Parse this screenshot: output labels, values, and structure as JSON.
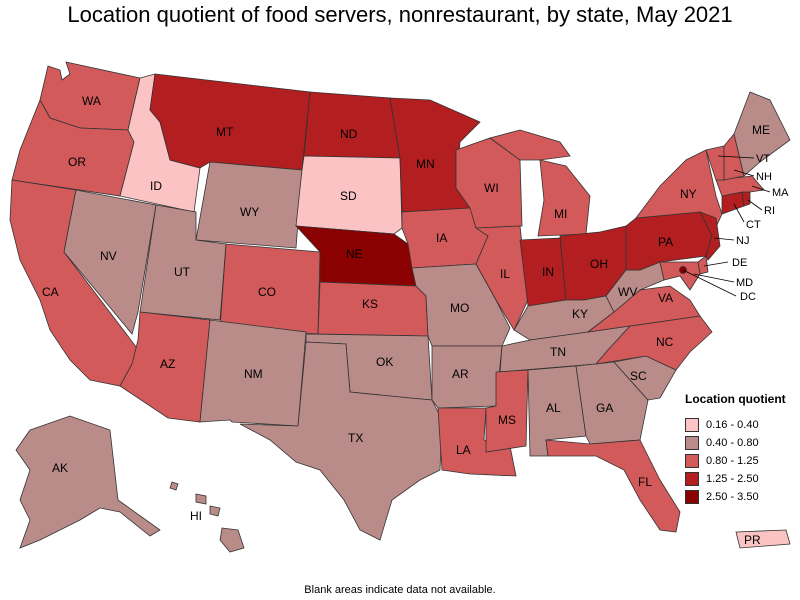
{
  "title": "Location quotient of food servers, nonrestaurant, by state, May 2021",
  "footnote": "Blank areas indicate data not available.",
  "legend": {
    "title": "Location quotient",
    "bins": [
      {
        "label": "0.16 - 0.40",
        "color": "#fbc3c3"
      },
      {
        "label": "0.40 - 0.80",
        "color": "#b98c8a"
      },
      {
        "label": "0.80 - 1.25",
        "color": "#d35a5a"
      },
      {
        "label": "1.25 - 2.50",
        "color": "#b31e21"
      },
      {
        "label": "2.50 - 3.50",
        "color": "#8b0000"
      }
    ]
  },
  "states": {
    "WA": {
      "label": "WA",
      "bin": 2
    },
    "OR": {
      "label": "OR",
      "bin": 2
    },
    "CA": {
      "label": "CA",
      "bin": 2
    },
    "ID": {
      "label": "ID",
      "bin": 0
    },
    "NV": {
      "label": "NV",
      "bin": 1
    },
    "MT": {
      "label": "MT",
      "bin": 3
    },
    "WY": {
      "label": "WY",
      "bin": 1
    },
    "UT": {
      "label": "UT",
      "bin": 1
    },
    "AZ": {
      "label": "AZ",
      "bin": 2
    },
    "CO": {
      "label": "CO",
      "bin": 2
    },
    "NM": {
      "label": "NM",
      "bin": 1
    },
    "ND": {
      "label": "ND",
      "bin": 3
    },
    "SD": {
      "label": "SD",
      "bin": 0
    },
    "NE": {
      "label": "NE",
      "bin": 4
    },
    "KS": {
      "label": "KS",
      "bin": 2
    },
    "OK": {
      "label": "OK",
      "bin": 1
    },
    "TX": {
      "label": "TX",
      "bin": 1
    },
    "MN": {
      "label": "MN",
      "bin": 3
    },
    "IA": {
      "label": "IA",
      "bin": 2
    },
    "MO": {
      "label": "MO",
      "bin": 1
    },
    "AR": {
      "label": "AR",
      "bin": 1
    },
    "LA": {
      "label": "LA",
      "bin": 2
    },
    "WI": {
      "label": "WI",
      "bin": 2
    },
    "IL": {
      "label": "IL",
      "bin": 2
    },
    "MI": {
      "label": "MI",
      "bin": 2
    },
    "IN": {
      "label": "IN",
      "bin": 3
    },
    "OH": {
      "label": "OH",
      "bin": 3
    },
    "KY": {
      "label": "KY",
      "bin": 1
    },
    "TN": {
      "label": "TN",
      "bin": 1
    },
    "MS": {
      "label": "MS",
      "bin": 2
    },
    "AL": {
      "label": "AL",
      "bin": 1
    },
    "GA": {
      "label": "GA",
      "bin": 1
    },
    "FL": {
      "label": "FL",
      "bin": 2
    },
    "SC": {
      "label": "SC",
      "bin": 1
    },
    "NC": {
      "label": "NC",
      "bin": 2
    },
    "VA": {
      "label": "VA",
      "bin": 2
    },
    "WV": {
      "label": "WV",
      "bin": 1
    },
    "PA": {
      "label": "PA",
      "bin": 3
    },
    "NY": {
      "label": "NY",
      "bin": 2
    },
    "ME": {
      "label": "ME",
      "bin": 1
    },
    "VT": {
      "label": "VT",
      "bin": 2
    },
    "NH": {
      "label": "NH",
      "bin": 2
    },
    "MA": {
      "label": "MA",
      "bin": 2
    },
    "RI": {
      "label": "RI",
      "bin": 3
    },
    "CT": {
      "label": "CT",
      "bin": 3
    },
    "NJ": {
      "label": "NJ",
      "bin": 3
    },
    "DE": {
      "label": "DE",
      "bin": 2
    },
    "MD": {
      "label": "MD",
      "bin": 2
    },
    "DC": {
      "label": "DC",
      "bin": 4
    },
    "AK": {
      "label": "AK",
      "bin": 1
    },
    "HI": {
      "label": "HI",
      "bin": 1
    },
    "PR": {
      "label": "PR",
      "bin": 0
    }
  }
}
